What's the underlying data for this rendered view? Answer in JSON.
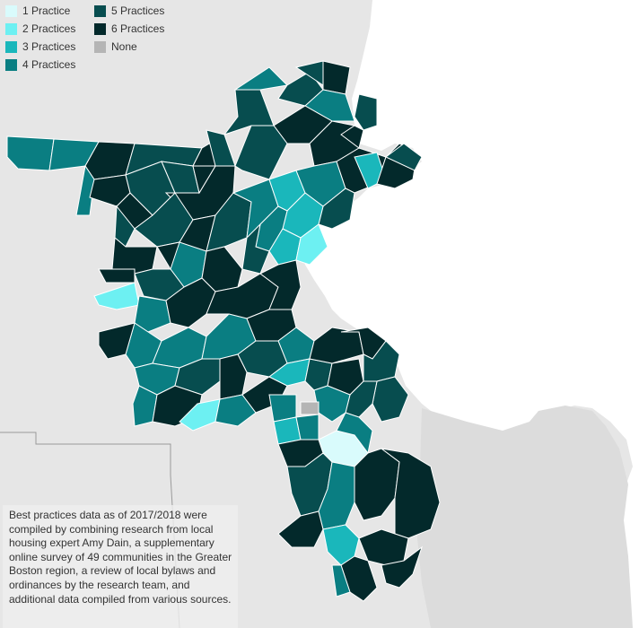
{
  "legend": {
    "items": [
      {
        "label": "1 Practice",
        "color": "#d9fbfc"
      },
      {
        "label": "2 Practices",
        "color": "#6df0f2"
      },
      {
        "label": "3 Practices",
        "color": "#1ab7bb"
      },
      {
        "label": "4 Practices",
        "color": "#0a7e82"
      },
      {
        "label": "5 Practices",
        "color": "#074d4f"
      },
      {
        "label": "6 Practices",
        "color": "#03292b"
      },
      {
        "label": "None",
        "color": "#b5b5b5"
      }
    ]
  },
  "note": {
    "text": "Best practices data as of 2017/2018 were compiled by combining research from local housing expert Amy Dain, a supplementary online survey of 49 communities in the Greater Boston region, a review of local bylaws and ordinances by the research team, and additional data compiled from various sources."
  },
  "colors": {
    "background": "#e6e6e6",
    "ocean": "#ffffff",
    "boundary": "#c9c9c9",
    "town_border": "#ffffff"
  }
}
